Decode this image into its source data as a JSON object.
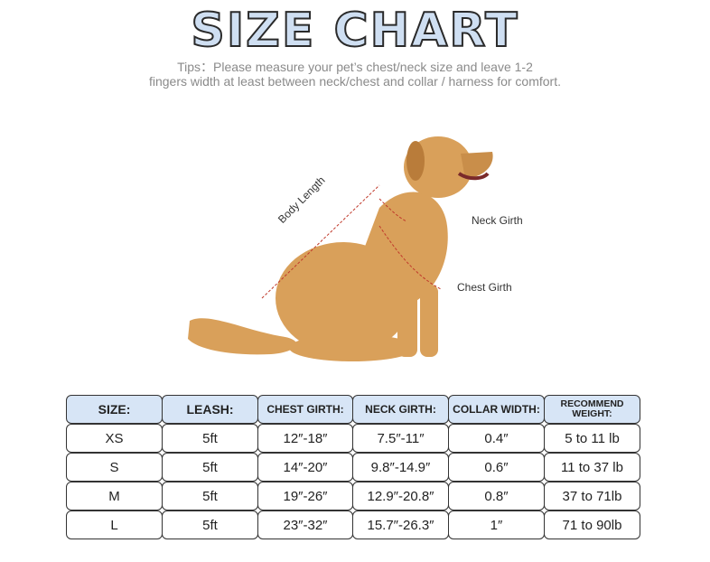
{
  "title": "SIZE CHART",
  "tips": {
    "line1": "Tips：Please measure your pet’s chest/neck size and leave 1-2",
    "line2": "fingers width at least between neck/chest and collar /  harness for comfort."
  },
  "diagram_labels": {
    "body_length": "Body Length",
    "neck_girth": "Neck Girth",
    "chest_girth": "Chest Girth"
  },
  "colors": {
    "header_fill": "#d7e5f6",
    "title_fill": "#cfdff2",
    "measure_line": "#c0392b"
  },
  "table": {
    "headers": [
      "SIZE:",
      "LEASH:",
      "CHEST GIRTH:",
      "NECK GIRTH:",
      "COLLAR WIDTH:",
      "RECOMMEND WEIGHT:"
    ],
    "rows": [
      [
        "XS",
        "5ft",
        "12″-18″",
        "7.5″-11″",
        "0.4″",
        "5 to 11 lb"
      ],
      [
        "S",
        "5ft",
        "14″-20″",
        "9.8″-14.9″",
        "0.6″",
        "11 to 37 lb"
      ],
      [
        "M",
        "5ft",
        "19″-26″",
        "12.9″-20.8″",
        "0.8″",
        "37 to 71lb"
      ],
      [
        "L",
        "5ft",
        "23″-32″",
        "15.7″-26.3″",
        "1″",
        "71 to 90lb"
      ]
    ]
  }
}
